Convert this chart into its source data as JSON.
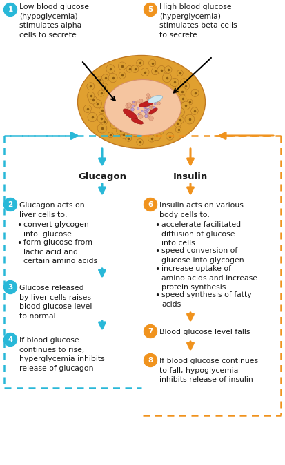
{
  "bg_color": "#ffffff",
  "cyan_color": "#29b8d8",
  "orange_color": "#f0931e",
  "text_color": "#1a1a1a",
  "left_label": "Glucagon",
  "right_label": "Insulin",
  "step1_num": "1",
  "step1_text": "Low blood glucose\n(hypoglycemia)\nstimulates alpha\ncells to secrete",
  "step5_num": "5",
  "step5_text": "High blood glucose\n(hyperglycemia)\nstimulates beta cells\nto secrete",
  "step2_num": "2",
  "step2_header": "Glucagon acts on\nliver cells to:",
  "step2_bullets": [
    "convert glycogen\ninto  glucose",
    "form glucose from\nlactic acid and\ncertain amino acids"
  ],
  "step3_num": "3",
  "step3_text": "Glucose released\nby liver cells raises\nblood glucose level\nto normal",
  "step4_num": "4",
  "step4_text": "If blood glucose\ncontinues to rise,\nhyperglycemia inhibits\nrelease of glucagon",
  "step6_num": "6",
  "step6_header": "Insulin acts on various\nbody cells to:",
  "step6_bullets": [
    "accelerate facilitated\ndiffusion of glucose\ninto cells",
    "speed conversion of\nglucose into glycogen",
    "increase uptake of\namino acids and increase\nprotein synthesis",
    "speed synthesis of fatty\nacids"
  ],
  "step7_num": "7",
  "step7_text": "Blood glucose level falls",
  "step8_num": "8",
  "step8_text": "If blood glucose continues\nto fall, hypoglycemia\ninhibits release of insulin",
  "fig_w": 4.13,
  "fig_h": 6.75,
  "dpi": 100
}
